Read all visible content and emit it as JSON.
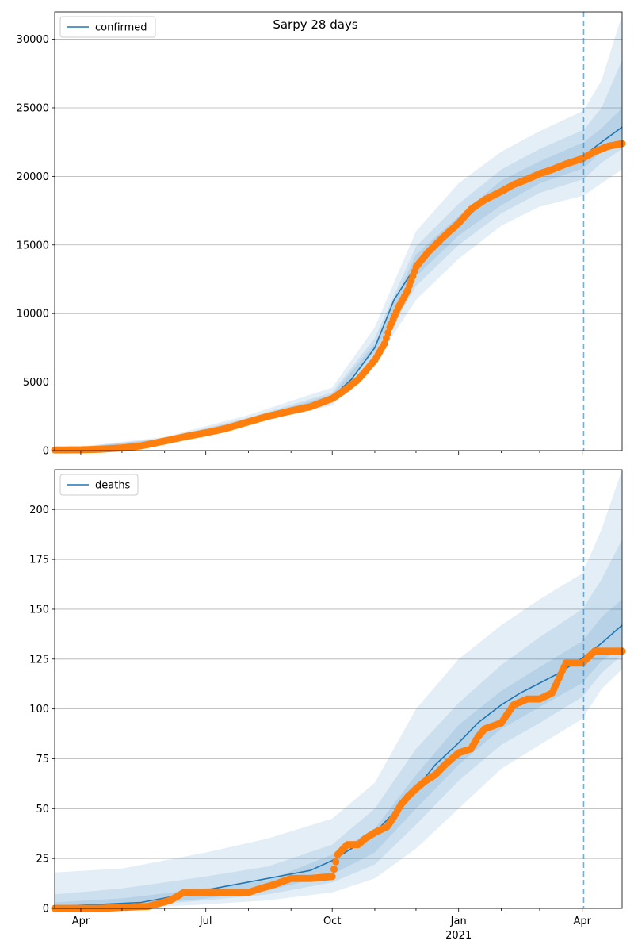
{
  "figure": {
    "suptitle": "Sarpy 28 days",
    "x_tick_labels": [
      "Apr",
      "Jul",
      "Oct",
      "Jan",
      "Apr"
    ],
    "x_year_label": "2021",
    "forecast_start": "2021-04-02",
    "colors": {
      "model": "#1f77b4",
      "observed": "#ff7f0e",
      "band": "#1f77b4",
      "forecast_line": "#1f77b4",
      "grid": "#b0b0b0"
    }
  },
  "chart_data": [
    {
      "type": "line",
      "legend": [
        "confirmed"
      ],
      "legend_position": "top-left",
      "grid": "horizontal",
      "xlim": [
        "2020-03-13",
        "2021-04-30"
      ],
      "ylim": [
        0,
        32000
      ],
      "yticks": [
        0,
        5000,
        10000,
        15000,
        20000,
        25000,
        30000
      ],
      "series": [
        {
          "name": "confirmed",
          "kind": "model",
          "x": [
            "2020-03-13",
            "2020-04-01",
            "2020-05-01",
            "2020-06-01",
            "2020-07-01",
            "2020-08-01",
            "2020-09-01",
            "2020-10-01",
            "2020-10-15",
            "2020-11-01",
            "2020-11-15",
            "2020-12-01",
            "2020-12-15",
            "2021-01-01",
            "2021-01-15",
            "2021-02-01",
            "2021-02-15",
            "2021-03-01",
            "2021-03-15",
            "2021-04-02",
            "2021-04-15",
            "2021-04-30"
          ],
          "y": [
            50,
            80,
            200,
            800,
            1300,
            2200,
            2900,
            3900,
            5200,
            7500,
            11000,
            13500,
            15200,
            16400,
            17800,
            18900,
            19700,
            20300,
            20800,
            21500,
            22500,
            23600
          ]
        },
        {
          "name": "observed",
          "kind": "scatter",
          "x": [
            "2020-03-13",
            "2020-04-01",
            "2020-04-15",
            "2020-05-01",
            "2020-05-15",
            "2020-06-01",
            "2020-06-15",
            "2020-07-01",
            "2020-07-15",
            "2020-08-01",
            "2020-08-15",
            "2020-09-01",
            "2020-09-15",
            "2020-10-01",
            "2020-10-10",
            "2020-10-20",
            "2020-11-01",
            "2020-11-08",
            "2020-11-12",
            "2020-11-18",
            "2020-11-25",
            "2020-12-01",
            "2020-12-10",
            "2020-12-20",
            "2021-01-01",
            "2021-01-10",
            "2021-01-20",
            "2021-02-01",
            "2021-02-10",
            "2021-02-20",
            "2021-03-01",
            "2021-03-10",
            "2021-03-20",
            "2021-04-01",
            "2021-04-10",
            "2021-04-20",
            "2021-04-30"
          ],
          "y": [
            50,
            60,
            100,
            200,
            350,
            700,
            1000,
            1300,
            1600,
            2100,
            2500,
            2900,
            3200,
            3800,
            4400,
            5200,
            6600,
            7800,
            9000,
            10400,
            11700,
            13400,
            14500,
            15500,
            16600,
            17600,
            18300,
            18900,
            19400,
            19800,
            20200,
            20500,
            20900,
            21300,
            21800,
            22200,
            22400
          ]
        }
      ],
      "bands": {
        "x": [
          "2020-03-13",
          "2020-06-01",
          "2020-08-01",
          "2020-10-01",
          "2020-11-01",
          "2020-12-01",
          "2021-01-01",
          "2021-02-01",
          "2021-03-01",
          "2021-04-02",
          "2021-04-15",
          "2021-04-30"
        ],
        "lower_outer": [
          30,
          600,
          1900,
          3300,
          6400,
          11000,
          14000,
          16400,
          17800,
          18600,
          19500,
          20500
        ],
        "upper_outer": [
          80,
          1000,
          2600,
          4600,
          9000,
          16000,
          19500,
          21800,
          23300,
          24800,
          27000,
          31800
        ],
        "lower_mid": [
          40,
          700,
          2050,
          3550,
          6900,
          12000,
          15000,
          17300,
          18800,
          19800,
          21000,
          22000
        ],
        "upper_mid": [
          70,
          900,
          2400,
          4250,
          8200,
          14900,
          18000,
          20500,
          22000,
          23400,
          25000,
          28500
        ],
        "lower_inner": [
          45,
          750,
          2150,
          3720,
          7200,
          12700,
          15700,
          17900,
          19500,
          20600,
          21800,
          22800
        ],
        "upper_inner": [
          60,
          850,
          2300,
          4080,
          7800,
          14300,
          17100,
          19700,
          21100,
          22500,
          23500,
          25000
        ]
      }
    },
    {
      "type": "line",
      "legend": [
        "deaths"
      ],
      "legend_position": "top-left",
      "grid": "horizontal",
      "xlim": [
        "2020-03-13",
        "2021-04-30"
      ],
      "ylim": [
        0,
        220
      ],
      "yticks": [
        0,
        25,
        50,
        75,
        100,
        125,
        150,
        175,
        200
      ],
      "series": [
        {
          "name": "deaths",
          "kind": "model",
          "x": [
            "2020-03-13",
            "2020-04-15",
            "2020-05-15",
            "2020-06-15",
            "2020-07-15",
            "2020-08-15",
            "2020-09-15",
            "2020-10-01",
            "2020-10-15",
            "2020-11-01",
            "2020-11-15",
            "2020-12-01",
            "2020-12-15",
            "2021-01-01",
            "2021-01-15",
            "2021-02-01",
            "2021-02-15",
            "2021-03-01",
            "2021-03-15",
            "2021-04-02",
            "2021-04-15",
            "2021-04-30"
          ],
          "y": [
            1,
            2,
            3,
            7,
            11,
            15,
            19,
            24,
            30,
            38,
            48,
            60,
            72,
            83,
            93,
            102,
            108,
            113,
            118,
            126,
            133,
            142
          ]
        },
        {
          "name": "observed",
          "kind": "scatter",
          "x": [
            "2020-03-13",
            "2020-04-15",
            "2020-05-20",
            "2020-06-05",
            "2020-06-15",
            "2020-07-15",
            "2020-08-01",
            "2020-08-10",
            "2020-08-20",
            "2020-09-01",
            "2020-09-15",
            "2020-10-01",
            "2020-10-05",
            "2020-10-12",
            "2020-10-20",
            "2020-10-25",
            "2020-11-01",
            "2020-11-10",
            "2020-11-15",
            "2020-11-20",
            "2020-11-25",
            "2020-12-01",
            "2020-12-08",
            "2020-12-15",
            "2020-12-22",
            "2021-01-01",
            "2021-01-10",
            "2021-01-15",
            "2021-01-20",
            "2021-02-01",
            "2021-02-10",
            "2021-02-20",
            "2021-03-01",
            "2021-03-10",
            "2021-03-20",
            "2021-04-01",
            "2021-04-10",
            "2021-04-20",
            "2021-04-30"
          ],
          "y": [
            0,
            0,
            1,
            4,
            8,
            8,
            8,
            10,
            12,
            15,
            15,
            16,
            27,
            32,
            32,
            35,
            38,
            41,
            46,
            52,
            56,
            60,
            64,
            67,
            72,
            78,
            80,
            86,
            90,
            93,
            102,
            105,
            105,
            108,
            123,
            123,
            129,
            129,
            129
          ]
        }
      ],
      "bands": {
        "x": [
          "2020-03-13",
          "2020-05-01",
          "2020-07-01",
          "2020-08-15",
          "2020-10-01",
          "2020-11-01",
          "2020-12-01",
          "2021-01-01",
          "2021-02-01",
          "2021-03-01",
          "2021-04-01",
          "2021-04-15",
          "2021-04-30"
        ],
        "lower_outer": [
          0,
          0,
          2,
          4,
          8,
          15,
          30,
          50,
          70,
          82,
          95,
          110,
          120
        ],
        "upper_outer": [
          18,
          20,
          28,
          35,
          45,
          63,
          100,
          125,
          142,
          155,
          168,
          190,
          220
        ],
        "lower_mid": [
          0,
          1,
          4,
          7,
          13,
          22,
          42,
          64,
          82,
          93,
          106,
          118,
          127
        ],
        "upper_mid": [
          7,
          10,
          16,
          21,
          32,
          50,
          80,
          103,
          122,
          136,
          150,
          165,
          185
        ],
        "lower_inner": [
          0,
          1,
          5,
          9,
          17,
          28,
          50,
          72,
          90,
          101,
          113,
          124,
          131
        ],
        "upper_inner": [
          3,
          5,
          10,
          14,
          27,
          40,
          67,
          92,
          109,
          121,
          134,
          146,
          155
        ]
      }
    }
  ]
}
